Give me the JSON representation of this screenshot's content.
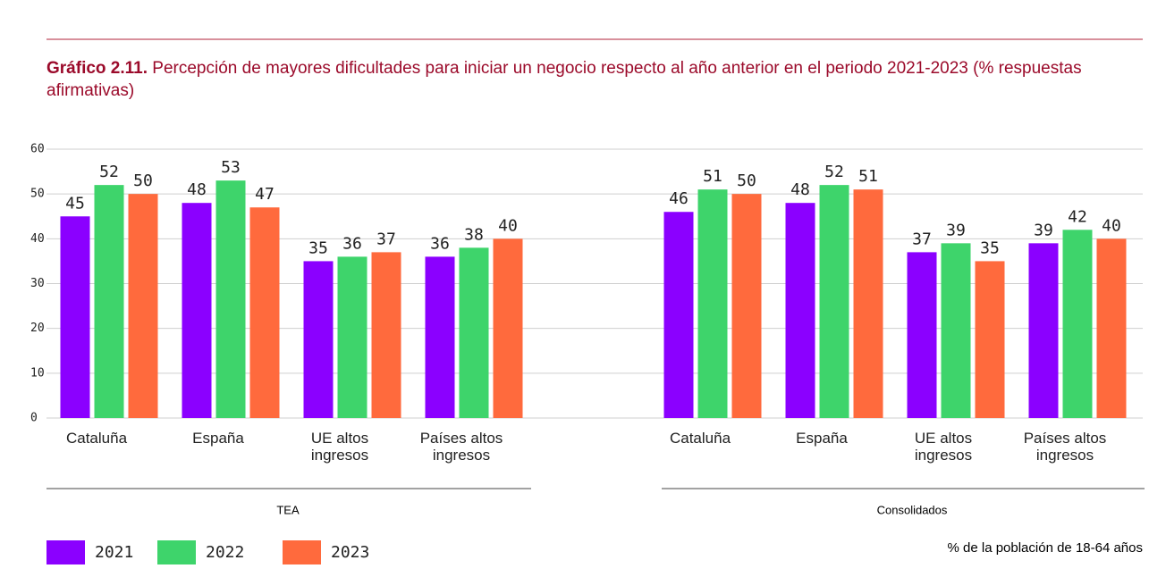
{
  "chart_data": {
    "type": "bar",
    "title_label": "Gráfico 2.11.",
    "title": "Percepción de mayores dificultades para iniciar un negocio respecto al año anterior en el periodo 2021-2023 (% respuestas afirmativas)",
    "panels": [
      "TEA",
      "Consolidados"
    ],
    "categories": [
      "Cataluña",
      "España",
      "UE altos ingresos",
      "Países altos ingresos",
      "Cataluña",
      "España",
      "UE altos ingresos",
      "Países altos ingresos"
    ],
    "series": [
      {
        "name": "2021",
        "color": "#8b00ff",
        "values": [
          45,
          48,
          35,
          36,
          46,
          48,
          37,
          39
        ]
      },
      {
        "name": "2022",
        "color": "#3ed46b",
        "values": [
          52,
          53,
          36,
          38,
          51,
          52,
          39,
          42
        ]
      },
      {
        "name": "2023",
        "color": "#ff6a3d",
        "values": [
          50,
          47,
          37,
          40,
          50,
          51,
          35,
          40
        ]
      }
    ],
    "ylim": [
      0,
      60
    ],
    "yticks": [
      0,
      10,
      20,
      30,
      40,
      50,
      60
    ],
    "grid": true,
    "note": "% de la población de 18-64 años"
  }
}
